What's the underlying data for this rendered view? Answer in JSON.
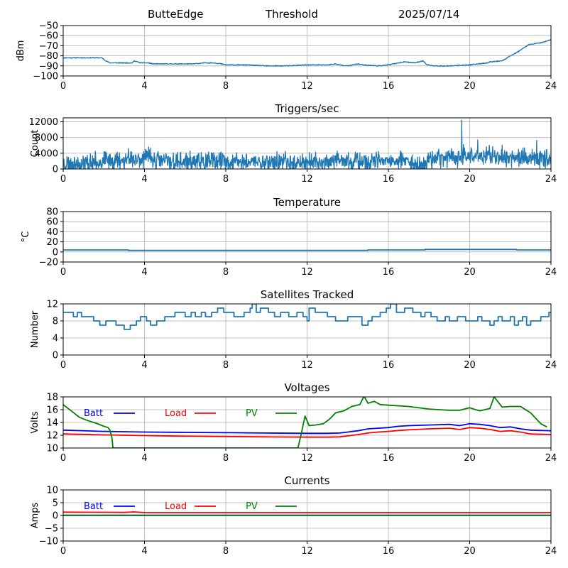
{
  "header": {
    "station": "ButteEdge",
    "mode": "Threshold",
    "date": "2025/07/14"
  },
  "colors": {
    "default_line": "#1f77b4",
    "batt": "#0000ff",
    "load": "#ff0000",
    "pv": "#008000",
    "grid": "#b0b0b0"
  },
  "chart_data": [
    {
      "type": "line",
      "name": "rssi",
      "title": "",
      "xlabel": "",
      "ylabel": "dBm",
      "xlim": [
        0,
        24
      ],
      "ylim": [
        -100,
        -50
      ],
      "xticks": [
        0,
        4,
        8,
        12,
        16,
        20,
        24
      ],
      "yticks": [
        -100,
        -90,
        -80,
        -70,
        -60,
        -50
      ],
      "grid": true,
      "series": [
        {
          "style": "noisy",
          "noise": 0.4,
          "seed": 11,
          "x": [
            0,
            1.9,
            2.1,
            2.3,
            2.6,
            3.4,
            3.5,
            3.8,
            4.2,
            4.4,
            4.8,
            5.6,
            6.4,
            7,
            7.4,
            7.8,
            8,
            9,
            10,
            11,
            12,
            13,
            13.4,
            13.6,
            14,
            14.5,
            14.8,
            15.5,
            16,
            16.5,
            16.8,
            17.3,
            17.7,
            17.9,
            18.3,
            19,
            20,
            20.4,
            20.9,
            21,
            21.6,
            22,
            22.3,
            22.6,
            22.9,
            23.2,
            23.5,
            23.7,
            24
          ],
          "y": [
            -82,
            -82,
            -85,
            -87,
            -87,
            -87,
            -85,
            -87,
            -87,
            -88,
            -88,
            -88,
            -88,
            -87,
            -87,
            -88,
            -89,
            -89,
            -90,
            -90,
            -89,
            -89,
            -88,
            -89,
            -90,
            -88,
            -89,
            -90,
            -89,
            -87,
            -86,
            -87,
            -85,
            -89,
            -90,
            -90,
            -89,
            -88,
            -87,
            -86,
            -85,
            -80,
            -77,
            -73,
            -69,
            -68,
            -67,
            -66,
            -64
          ]
        }
      ]
    },
    {
      "type": "line",
      "name": "triggers",
      "title": "Triggers/sec",
      "xlabel": "",
      "ylabel": "Count",
      "xlim": [
        0,
        24
      ],
      "ylim": [
        0,
        13000
      ],
      "xticks": [
        0,
        4,
        8,
        12,
        16,
        20,
        24
      ],
      "yticks": [
        0,
        4000,
        8000,
        12000
      ],
      "grid": true,
      "series": [
        {
          "style": "noisy",
          "noise": 2000,
          "seed": 23,
          "x": [
            0,
            1,
            2,
            3,
            4,
            5,
            6,
            7,
            8,
            9,
            10,
            11,
            12,
            13,
            14,
            15,
            16,
            17,
            17.6,
            17.8,
            18,
            19,
            19.6,
            20,
            21,
            22,
            23,
            24
          ],
          "y": [
            1400,
            1400,
            1900,
            2400,
            2800,
            2000,
            1800,
            1800,
            1800,
            1800,
            1800,
            1800,
            1600,
            1800,
            1900,
            1800,
            1900,
            1800,
            1000,
            1800,
            2600,
            3000,
            3200,
            3200,
            3400,
            3000,
            2800,
            2600
          ],
          "spikes": [
            [
              2.0,
              4400
            ],
            [
              3.2,
              5200
            ],
            [
              4.2,
              5600
            ],
            [
              4.3,
              5300
            ],
            [
              4.05,
              4800
            ],
            [
              19.6,
              12400
            ],
            [
              19.7,
              6200
            ],
            [
              20.4,
              7400
            ],
            [
              21.6,
              6000
            ],
            [
              22.7,
              5400
            ],
            [
              23.3,
              7300
            ]
          ]
        }
      ]
    },
    {
      "type": "line",
      "name": "temperature",
      "title": "Temperature",
      "xlabel": "",
      "ylabel": "°C",
      "xlim": [
        0,
        24
      ],
      "ylim": [
        -20,
        80
      ],
      "xticks": [
        0,
        4,
        8,
        12,
        16,
        20,
        24
      ],
      "yticks": [
        -20,
        0,
        20,
        40,
        60,
        80
      ],
      "grid": true,
      "series": [
        {
          "style": "step",
          "x": [
            0,
            3.2,
            15,
            17.8,
            22.3,
            24
          ],
          "y": [
            4,
            3,
            4,
            5,
            4,
            4
          ]
        }
      ]
    },
    {
      "type": "line",
      "name": "satellites",
      "title": "Satellites Tracked",
      "xlabel": "",
      "ylabel": "Number",
      "xlim": [
        0,
        24
      ],
      "ylim": [
        0,
        12
      ],
      "xticks": [
        0,
        4,
        8,
        12,
        16,
        20,
        24
      ],
      "yticks": [
        0,
        4,
        8,
        12
      ],
      "grid": true,
      "series": [
        {
          "style": "step",
          "x": [
            0,
            0.5,
            0.7,
            0.9,
            1.2,
            1.5,
            1.8,
            2.1,
            2.6,
            2.9,
            3.0,
            3.3,
            3.6,
            3.8,
            4.1,
            4.3,
            4.6,
            5.0,
            5.5,
            6.0,
            6.3,
            6.5,
            6.8,
            7.0,
            7.3,
            7.6,
            7.9,
            8.4,
            8.9,
            9.2,
            9.3,
            9.5,
            9.7,
            10.1,
            10.4,
            10.7,
            11.1,
            11.5,
            11.8,
            12.0,
            12.1,
            12.4,
            13.0,
            13.4,
            14.0,
            14.7,
            15.0,
            15.2,
            15.6,
            15.9,
            16.1,
            16.4,
            16.8,
            17.2,
            17.6,
            17.8,
            18.1,
            18.4,
            18.8,
            19.0,
            19.4,
            19.8,
            20.0,
            20.4,
            20.6,
            21.0,
            21.2,
            21.4,
            21.6,
            22.0,
            22.2,
            22.4,
            22.6,
            22.8,
            23.0,
            23.5,
            23.9
          ],
          "y": [
            10,
            9,
            10,
            9,
            9,
            8,
            7,
            8,
            7,
            7,
            6,
            7,
            8,
            9,
            8,
            7,
            8,
            9,
            10,
            9,
            10,
            9,
            10,
            9,
            10,
            11,
            10,
            9,
            10,
            11,
            12,
            10,
            11,
            10,
            9,
            10,
            9,
            10,
            9,
            8,
            11,
            10,
            9,
            8,
            9,
            7,
            8,
            9,
            10,
            11,
            12,
            10,
            11,
            10,
            9,
            10,
            9,
            8,
            9,
            8,
            9,
            8,
            8,
            9,
            8,
            7,
            8,
            9,
            8,
            9,
            7,
            8,
            9,
            7,
            8,
            9,
            10
          ]
        }
      ]
    },
    {
      "type": "line",
      "name": "voltages",
      "title": "Voltages",
      "xlabel": "",
      "ylabel": "Volts",
      "xlim": [
        0,
        24
      ],
      "ylim": [
        10,
        18
      ],
      "xticks": [
        0,
        4,
        8,
        12,
        16,
        20,
        24
      ],
      "yticks": [
        10,
        12,
        14,
        16,
        18
      ],
      "grid": true,
      "legend": "top-left inline",
      "series": [
        {
          "name": "Batt",
          "color": "#0000ff",
          "x": [
            0,
            2,
            4,
            6,
            8,
            10,
            12,
            13,
            13.6,
            14,
            14.5,
            15,
            15.5,
            16,
            16.5,
            17,
            18,
            19,
            19.5,
            20,
            20.5,
            21,
            21.5,
            22,
            22.5,
            23,
            24
          ],
          "y": [
            12.8,
            12.6,
            12.5,
            12.45,
            12.4,
            12.35,
            12.3,
            12.3,
            12.35,
            12.5,
            12.7,
            13.0,
            13.1,
            13.2,
            13.4,
            13.5,
            13.6,
            13.7,
            13.5,
            13.8,
            13.7,
            13.5,
            13.2,
            13.3,
            13.0,
            12.8,
            12.7
          ]
        },
        {
          "name": "Load",
          "color": "#ff0000",
          "x": [
            0,
            2,
            4,
            6,
            8,
            10,
            12,
            13,
            13.6,
            14,
            14.5,
            15,
            15.5,
            16,
            16.5,
            17,
            18,
            19,
            19.5,
            20,
            20.5,
            21,
            21.5,
            22,
            22.5,
            23,
            24
          ],
          "y": [
            12.2,
            12.05,
            11.95,
            11.85,
            11.8,
            11.75,
            11.7,
            11.7,
            11.75,
            11.9,
            12.1,
            12.35,
            12.5,
            12.6,
            12.75,
            12.85,
            13.0,
            13.1,
            12.9,
            13.2,
            13.1,
            12.9,
            12.6,
            12.7,
            12.5,
            12.2,
            12.1
          ]
        },
        {
          "name": "PV",
          "color": "#008000",
          "x": [
            0,
            0.4,
            0.8,
            1.2,
            1.6,
            2.0,
            2.2,
            2.3,
            2.4,
            2.45,
            11.55,
            11.7,
            11.9,
            12.1,
            12.4,
            12.8,
            13.1,
            13.4,
            13.8,
            14.2,
            14.6,
            14.8,
            15.0,
            15.3,
            15.6,
            16,
            17,
            18,
            19,
            19.5,
            20,
            20.5,
            21,
            21.2,
            21.6,
            22,
            22.5,
            23,
            23.5,
            23.8
          ],
          "y": [
            16.8,
            15.8,
            14.8,
            14.3,
            13.9,
            13.4,
            13.2,
            12.8,
            11.6,
            10,
            10,
            12,
            15,
            13.5,
            13.6,
            13.8,
            14.5,
            15.5,
            15.8,
            16.5,
            16.8,
            18.1,
            17,
            17.3,
            16.8,
            16.7,
            16.5,
            16.1,
            15.9,
            15.9,
            16.3,
            15.8,
            16.2,
            18.0,
            16.4,
            16.5,
            16.5,
            15.5,
            13.8,
            13.3
          ]
        }
      ]
    },
    {
      "type": "line",
      "name": "currents",
      "title": "Currents",
      "xlabel": "",
      "ylabel": "Amps",
      "xlim": [
        0,
        24
      ],
      "ylim": [
        -10,
        10
      ],
      "xticks": [
        0,
        4,
        8,
        12,
        16,
        20,
        24
      ],
      "yticks": [
        -10,
        -5,
        0,
        5,
        10
      ],
      "grid": true,
      "legend": "top-left inline",
      "series": [
        {
          "name": "Batt",
          "color": "#0000ff",
          "x": [
            0,
            24
          ],
          "y": [
            0.1,
            0.1
          ]
        },
        {
          "name": "Load",
          "color": "#ff0000",
          "x": [
            0,
            3,
            3.5,
            4,
            8,
            12,
            16,
            20,
            24
          ],
          "y": [
            1.3,
            1.2,
            1.4,
            1.1,
            1.1,
            1.1,
            1.1,
            1.1,
            1.1
          ]
        },
        {
          "name": "PV",
          "color": "#008000",
          "x": [
            0,
            24
          ],
          "y": [
            0,
            0
          ]
        }
      ]
    }
  ]
}
